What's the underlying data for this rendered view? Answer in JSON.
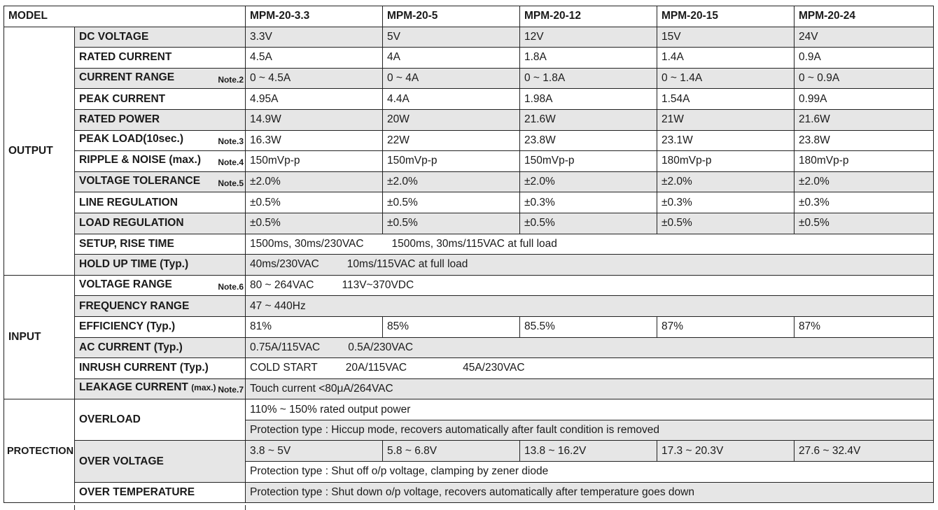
{
  "header": {
    "model_label": "MODEL",
    "models": [
      "MPM-20-3.3",
      "MPM-20-5",
      "MPM-20-12",
      "MPM-20-15",
      "MPM-20-24"
    ]
  },
  "output": {
    "category": "OUTPUT",
    "dc_voltage": {
      "label": "DC VOLTAGE",
      "values": [
        "3.3V",
        "5V",
        "12V",
        "15V",
        "24V"
      ]
    },
    "rated_current": {
      "label": "RATED CURRENT",
      "values": [
        "4.5A",
        "4A",
        "1.8A",
        "1.4A",
        "0.9A"
      ]
    },
    "current_range": {
      "label": "CURRENT RANGE",
      "note": "Note.2",
      "values": [
        "0 ~ 4.5A",
        "0 ~ 4A",
        "0 ~ 1.8A",
        "0 ~ 1.4A",
        "0 ~ 0.9A"
      ]
    },
    "peak_current": {
      "label": "PEAK CURRENT",
      "values": [
        "4.95A",
        "4.4A",
        "1.98A",
        "1.54A",
        "0.99A"
      ]
    },
    "rated_power": {
      "label": "RATED POWER",
      "values": [
        "14.9W",
        "20W",
        "21.6W",
        "21W",
        "21.6W"
      ]
    },
    "peak_load": {
      "label": "PEAK LOAD(10sec.)",
      "note": "Note.3",
      "values": [
        "16.3W",
        "22W",
        "23.8W",
        "23.1W",
        "23.8W"
      ]
    },
    "ripple_noise": {
      "label": "RIPPLE & NOISE (max.)",
      "note": "Note.4",
      "values": [
        "150mVp-p",
        "150mVp-p",
        "150mVp-p",
        "180mVp-p",
        "180mVp-p"
      ]
    },
    "voltage_tolerance": {
      "label": "VOLTAGE TOLERANCE",
      "note": "Note.5",
      "values": [
        "±2.0%",
        "±2.0%",
        "±2.0%",
        "±2.0%",
        "±2.0%"
      ]
    },
    "line_regulation": {
      "label": "LINE REGULATION",
      "values": [
        "±0.5%",
        "±0.5%",
        "±0.3%",
        "±0.3%",
        "±0.3%"
      ]
    },
    "load_regulation": {
      "label": "LOAD REGULATION",
      "values": [
        "±0.5%",
        "±0.5%",
        "±0.5%",
        "±0.5%",
        "±0.5%"
      ]
    },
    "setup_rise": {
      "label": "SETUP, RISE TIME",
      "value_a": "1500ms, 30ms/230VAC",
      "value_b": "1500ms, 30ms/115VAC at full load"
    },
    "hold_up": {
      "label": "HOLD UP TIME (Typ.)",
      "value_a": "40ms/230VAC",
      "value_b": "10ms/115VAC at full load"
    }
  },
  "input": {
    "category": "INPUT",
    "voltage_range": {
      "label": "VOLTAGE RANGE",
      "note": "Note.6",
      "value_a": "80 ~ 264VAC",
      "value_b": "113V~370VDC"
    },
    "frequency_range": {
      "label": "FREQUENCY RANGE",
      "value": "47 ~ 440Hz"
    },
    "efficiency": {
      "label": "EFFICIENCY (Typ.)",
      "values": [
        "81%",
        "85%",
        "85.5%",
        "87%",
        "87%"
      ]
    },
    "ac_current": {
      "label": "AC CURRENT (Typ.)",
      "value_a": "0.75A/115VAC",
      "value_b": "0.5A/230VAC"
    },
    "inrush_current": {
      "label": "INRUSH CURRENT (Typ.)",
      "value_a": "COLD START",
      "value_b": "20A/115VAC",
      "value_c": "45A/230VAC"
    },
    "leakage_current": {
      "label": "LEAKAGE CURRENT",
      "label_small": "(max.)",
      "note": "Note.7",
      "value": "Touch  current <80μA/264VAC"
    }
  },
  "protection": {
    "category": "PROTECTION",
    "overload": {
      "label": "OVERLOAD",
      "line1": "110% ~ 150% rated output power",
      "line2": "Protection type : Hiccup mode, recovers automatically after fault condition is removed"
    },
    "over_voltage": {
      "label": "OVER VOLTAGE",
      "values": [
        "3.8 ~ 5V",
        "5.8 ~ 6.8V",
        "13.8 ~ 16.2V",
        "17.3 ~ 20.3V",
        "27.6 ~ 32.4V"
      ],
      "line2": "Protection type : Shut off o/p voltage, clamping by zener diode"
    },
    "over_temperature": {
      "label": "OVER TEMPERATURE",
      "value": "Protection type : Shut down o/p voltage, recovers automatically after temperature goes down"
    }
  }
}
